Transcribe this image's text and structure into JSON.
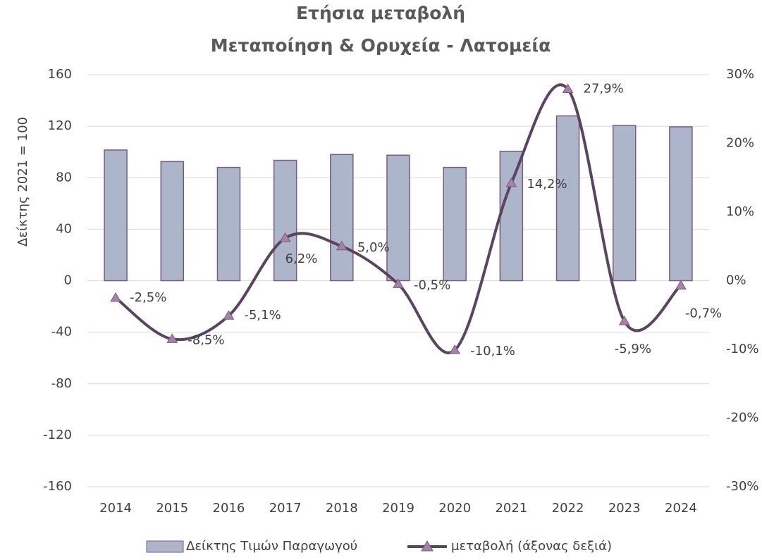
{
  "chart_data": {
    "type": "bar-line",
    "title": "Ετήσια μεταβολή",
    "subtitle": "Μεταποίηση & Ορυχεία - Λατομεία",
    "y_label": "Δείκτης 2021 = 100",
    "categories": [
      "2014",
      "2015",
      "2016",
      "2017",
      "2018",
      "2019",
      "2020",
      "2021",
      "2022",
      "2023",
      "2024"
    ],
    "series": [
      {
        "name": "Δείκτης Τιμών Παραγωγού",
        "type": "bar",
        "color": "#adb5ca",
        "values": [
          101.5,
          92.5,
          88,
          93.5,
          98,
          97.5,
          88,
          100.5,
          128,
          120.5,
          119.5
        ]
      },
      {
        "name": "μεταβολή (άξονας δεξιά)",
        "type": "line",
        "axis": "y2",
        "color": "#5b4461",
        "values": [
          -2.5,
          -8.5,
          -5.1,
          6.2,
          5.0,
          -0.5,
          -10.1,
          14.2,
          27.9,
          -5.9,
          -0.7
        ],
        "value_labels": [
          "-2,5%",
          "-8,5%",
          "-5,1%",
          "6,2%",
          "5,0%",
          "-0,5%",
          "-10,1%",
          "14,2%",
          "27,9%",
          "-5,9%",
          "-0,7%"
        ]
      }
    ],
    "ylim": [
      -160,
      160
    ],
    "yticks": [
      -160,
      -120,
      -80,
      -40,
      0,
      40,
      80,
      120,
      160
    ],
    "y2lim": [
      -30,
      30
    ],
    "y2ticks": [
      {
        "value": -30,
        "label": "-30%"
      },
      {
        "value": -20,
        "label": "-20%"
      },
      {
        "value": -10,
        "label": "-10%"
      },
      {
        "value": 0,
        "label": "0%"
      },
      {
        "value": 10,
        "label": "10%"
      },
      {
        "value": 20,
        "label": "20%"
      },
      {
        "value": 30,
        "label": "30%"
      }
    ],
    "grid": true,
    "legend": "bottom"
  }
}
